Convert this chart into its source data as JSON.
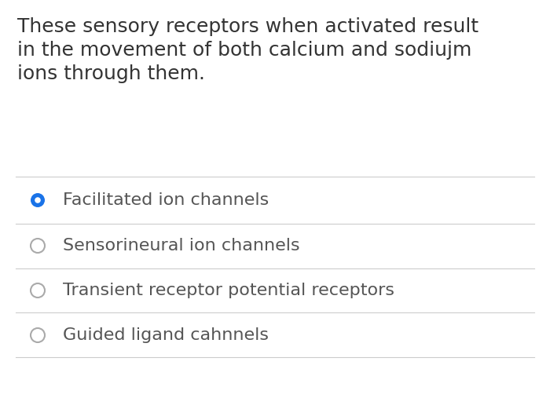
{
  "question_lines": [
    "These sensory receptors when activated result",
    "in the movement of both calcium and sodiujm",
    "ions through them."
  ],
  "options": [
    "Facilitated ion channels",
    "Sensorineural ion channels",
    "Transient receptor potential receptors",
    "Guided ligand cahnnels"
  ],
  "selected_index": 0,
  "bg_color": "#ffffff",
  "question_color": "#333333",
  "divider_color": "#cccccc",
  "selected_radio_fill": "#1a73e8",
  "unselected_radio_fill": "#ffffff",
  "unselected_radio_border": "#aaaaaa",
  "option_text_color": "#555555",
  "question_fontsize": 18,
  "option_fontsize": 16,
  "fig_width": 7.0,
  "fig_height": 5.07,
  "dpi": 100
}
